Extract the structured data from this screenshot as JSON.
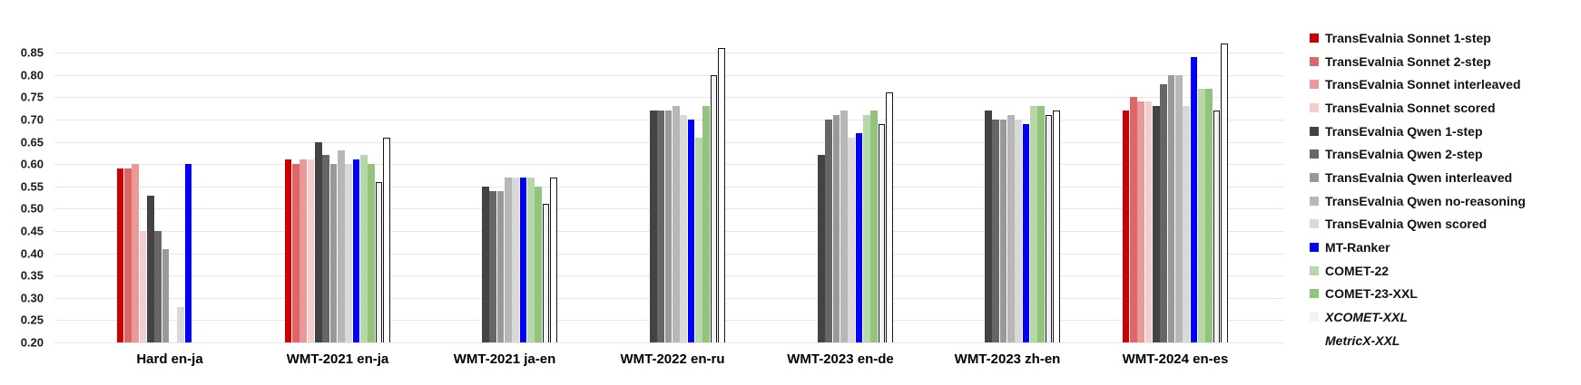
{
  "chart_data": {
    "type": "bar",
    "title": "",
    "xlabel": "",
    "ylabel": "",
    "grid": true,
    "legend_position": "right",
    "y_axis": {
      "min": 0.2,
      "max": 0.85,
      "step": 0.05,
      "tick_labels": [
        "0.85",
        "0.80",
        "0.75",
        "0.70",
        "0.65",
        "0.60",
        "0.55",
        "0.50",
        "0.45",
        "0.40",
        "0.35",
        "0.30",
        "0.25",
        "0.20"
      ]
    },
    "categories": [
      "Hard en-ja",
      "WMT-2021 en-ja",
      "WMT-2021 ja-en",
      "WMT-2022 en-ru",
      "WMT-2023 en-de",
      "WMT-2023 zh-en",
      "WMT-2024 en-es"
    ],
    "series": [
      {
        "name": "TransEvalnia Sonnet 1-step",
        "color": "#cc0000",
        "outlined": false,
        "italic": false,
        "values": [
          0.59,
          0.61,
          null,
          null,
          null,
          null,
          0.72
        ]
      },
      {
        "name": "TransEvalnia Sonnet 2-step",
        "color": "#e06666",
        "outlined": false,
        "italic": false,
        "values": [
          0.59,
          0.6,
          null,
          null,
          null,
          null,
          0.75
        ]
      },
      {
        "name": "TransEvalnia Sonnet interleaved",
        "color": "#ea9999",
        "outlined": false,
        "italic": false,
        "values": [
          0.6,
          0.61,
          null,
          null,
          null,
          null,
          0.74
        ]
      },
      {
        "name": "TransEvalnia Sonnet scored",
        "color": "#f4cccc",
        "outlined": false,
        "italic": false,
        "values": [
          0.45,
          0.61,
          null,
          null,
          null,
          null,
          0.74
        ]
      },
      {
        "name": "TransEvalnia Qwen 1-step",
        "color": "#434343",
        "outlined": false,
        "italic": false,
        "values": [
          0.53,
          0.65,
          0.55,
          0.72,
          0.62,
          0.72,
          0.73
        ]
      },
      {
        "name": "TransEvalnia Qwen 2-step",
        "color": "#666666",
        "outlined": false,
        "italic": false,
        "values": [
          0.45,
          0.62,
          0.54,
          0.72,
          0.7,
          0.7,
          0.78
        ]
      },
      {
        "name": "TransEvalnia Qwen interleaved",
        "color": "#999999",
        "outlined": false,
        "italic": false,
        "values": [
          0.41,
          0.6,
          0.54,
          0.72,
          0.71,
          0.7,
          0.8
        ]
      },
      {
        "name": "TransEvalnia Qwen no-reasoning",
        "color": "#b7b7b7",
        "outlined": false,
        "italic": false,
        "values": [
          null,
          0.63,
          0.57,
          0.73,
          0.72,
          0.71,
          0.8
        ]
      },
      {
        "name": "TransEvalnia Qwen scored",
        "color": "#d9d9d9",
        "outlined": false,
        "italic": false,
        "values": [
          0.28,
          0.6,
          0.57,
          0.71,
          0.66,
          0.7,
          0.73
        ]
      },
      {
        "name": "MT-Ranker",
        "color": "#0000ff",
        "outlined": false,
        "italic": false,
        "values": [
          0.6,
          0.61,
          0.57,
          0.7,
          0.67,
          0.69,
          0.84
        ]
      },
      {
        "name": "COMET-22",
        "color": "#b6d7a8",
        "outlined": false,
        "italic": false,
        "values": [
          null,
          0.62,
          0.57,
          0.66,
          0.71,
          0.73,
          0.77
        ]
      },
      {
        "name": "COMET-23-XXL",
        "color": "#93c47d",
        "outlined": false,
        "italic": false,
        "values": [
          null,
          0.6,
          0.55,
          0.73,
          0.72,
          0.73,
          0.77
        ]
      },
      {
        "name": "XCOMET-XXL",
        "color": "#f3f3f3",
        "outlined": true,
        "italic": true,
        "values": [
          null,
          0.56,
          0.51,
          0.8,
          0.69,
          0.71,
          0.72
        ]
      },
      {
        "name": "MetricX-XXL",
        "color": "#ffffff",
        "outlined": true,
        "italic": true,
        "values": [
          null,
          0.66,
          0.57,
          0.86,
          0.76,
          0.72,
          0.87
        ]
      }
    ]
  }
}
